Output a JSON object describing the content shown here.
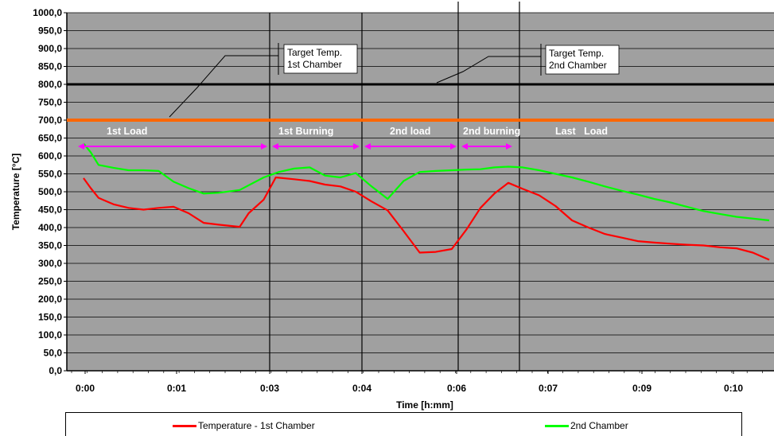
{
  "chart_data": {
    "type": "line",
    "xlabel": "Time [h:mm]",
    "ylabel": "Temperature [°C]",
    "ylim": [
      0,
      1000
    ],
    "yticks": [
      "0,0",
      "50,0",
      "100,0",
      "150,0",
      "200,0",
      "250,0",
      "300,0",
      "350,0",
      "400,0",
      "450,0",
      "500,0",
      "550,0",
      "600,0",
      "650,0",
      "700,0",
      "750,0",
      "800,0",
      "850,0",
      "900,0",
      "950,0",
      "1000,0"
    ],
    "xticks": [
      "0:00",
      "0:01",
      "0:03",
      "0:04",
      "0:06",
      "0:07",
      "0:09",
      "0:10"
    ],
    "grid": true,
    "legend_position": "bottom",
    "series": [
      {
        "name": "Temperature - 1st Chamber",
        "color": "#ff0000",
        "points": [
          [
            0.0,
            538
          ],
          [
            0.12,
            510
          ],
          [
            0.25,
            483
          ],
          [
            0.5,
            465
          ],
          [
            0.75,
            455
          ],
          [
            1.0,
            450
          ],
          [
            1.25,
            455
          ],
          [
            1.5,
            458
          ],
          [
            1.75,
            440
          ],
          [
            2.0,
            413
          ],
          [
            2.25,
            408
          ],
          [
            2.6,
            402
          ],
          [
            2.75,
            440
          ],
          [
            3.0,
            478
          ],
          [
            3.2,
            540
          ],
          [
            3.5,
            535
          ],
          [
            3.75,
            530
          ],
          [
            4.0,
            520
          ],
          [
            4.25,
            515
          ],
          [
            4.5,
            500
          ],
          [
            4.75,
            473
          ],
          [
            5.0,
            448
          ],
          [
            5.25,
            390
          ],
          [
            5.5,
            330
          ],
          [
            5.75,
            332
          ],
          [
            6.0,
            340
          ],
          [
            6.25,
            395
          ],
          [
            6.5,
            455
          ],
          [
            6.75,
            495
          ],
          [
            7.0,
            525
          ],
          [
            7.25,
            508
          ],
          [
            7.5,
            490
          ],
          [
            7.75,
            460
          ],
          [
            8.0,
            420
          ],
          [
            8.25,
            400
          ],
          [
            8.5,
            382
          ],
          [
            8.75,
            372
          ],
          [
            9.0,
            362
          ],
          [
            9.25,
            358
          ],
          [
            9.5,
            355
          ],
          [
            9.75,
            352
          ],
          [
            10.0,
            350
          ],
          [
            10.25,
            345
          ],
          [
            10.5,
            342
          ],
          [
            10.75,
            330
          ],
          [
            11.0,
            310
          ]
        ]
      },
      {
        "name": "2nd Chamber",
        "color": "#00ff00",
        "points": [
          [
            0.0,
            635
          ],
          [
            0.12,
            610
          ],
          [
            0.25,
            575
          ],
          [
            0.5,
            567
          ],
          [
            0.75,
            560
          ],
          [
            1.0,
            560
          ],
          [
            1.25,
            558
          ],
          [
            1.5,
            528
          ],
          [
            1.75,
            510
          ],
          [
            2.0,
            495
          ],
          [
            2.25,
            497
          ],
          [
            2.6,
            505
          ],
          [
            3.0,
            540
          ],
          [
            3.25,
            555
          ],
          [
            3.5,
            565
          ],
          [
            3.75,
            568
          ],
          [
            4.0,
            545
          ],
          [
            4.25,
            540
          ],
          [
            4.5,
            552
          ],
          [
            4.75,
            515
          ],
          [
            5.0,
            480
          ],
          [
            5.25,
            530
          ],
          [
            5.5,
            555
          ],
          [
            5.75,
            558
          ],
          [
            6.0,
            560
          ],
          [
            6.25,
            562
          ],
          [
            6.5,
            563
          ],
          [
            6.75,
            568
          ],
          [
            7.0,
            570
          ],
          [
            7.25,
            568
          ],
          [
            7.5,
            560
          ],
          [
            7.75,
            550
          ],
          [
            8.0,
            540
          ],
          [
            8.25,
            528
          ],
          [
            8.5,
            515
          ],
          [
            8.75,
            503
          ],
          [
            9.0,
            492
          ],
          [
            9.25,
            480
          ],
          [
            9.5,
            470
          ],
          [
            9.75,
            458
          ],
          [
            10.0,
            446
          ],
          [
            10.25,
            438
          ],
          [
            10.5,
            430
          ],
          [
            11.0,
            420
          ]
        ]
      }
    ],
    "target_lines": [
      {
        "value": 700,
        "color": "#ff6600"
      },
      {
        "value": 800,
        "color": "#000000"
      }
    ],
    "phase_dividers": [
      3.1,
      4.6,
      6.3,
      7.2
    ],
    "phases": [
      {
        "label": "1st Load",
        "start": 0.15,
        "end": 3.1,
        "label_at": 1.0
      },
      {
        "label": "1st Burning",
        "start": 3.1,
        "end": 4.6,
        "label_at": 3.85
      },
      {
        "label": "2nd load",
        "start": 4.6,
        "end": 6.1,
        "label_at": 5.35
      },
      {
        "label": "2nd burning",
        "start": 6.1,
        "end": 7.0,
        "label_at": 6.55
      },
      {
        "label": "Last   Load",
        "start": null,
        "end": null,
        "label_at": 8.0
      }
    ],
    "callouts": [
      {
        "lines": [
          "Target Temp.",
          "1st Chamber"
        ],
        "target": 700
      },
      {
        "lines": [
          "Target Temp.",
          "2nd Chamber"
        ],
        "target": 800
      }
    ],
    "colors": {
      "plot_background": "#a0a0a0",
      "grid": "#000000",
      "arrow": "#ff00ff",
      "phase_label": "#ffffff"
    }
  }
}
